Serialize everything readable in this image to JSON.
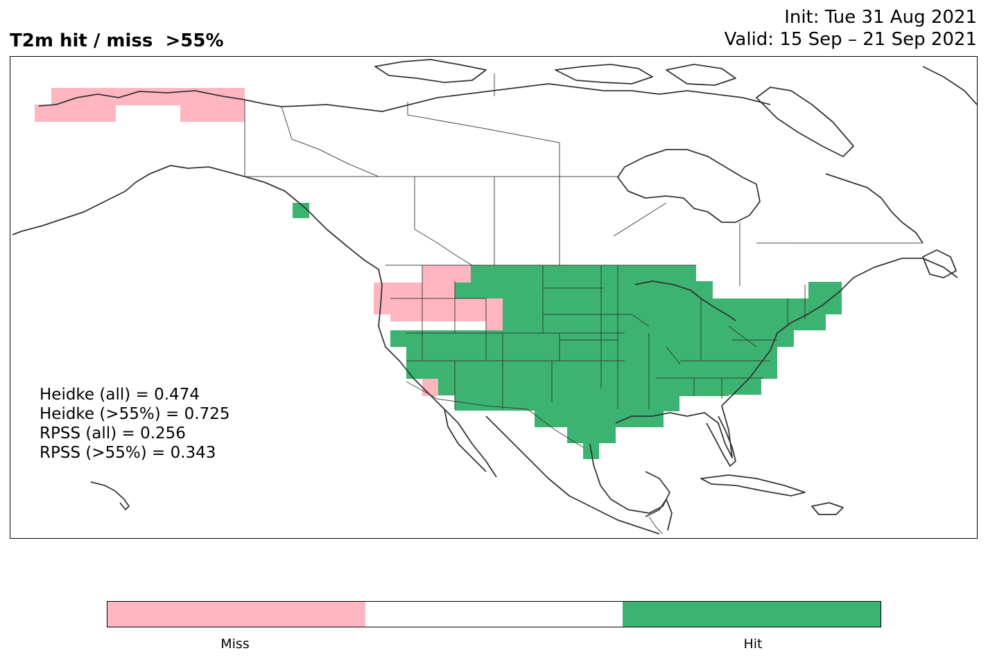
{
  "header": {
    "title": "T2m hit / miss  >55%",
    "init": "Init: Tue 31 Aug 2021",
    "valid": "Valid: 15 Sep – 21 Sep 2021"
  },
  "stats": [
    "Heidke (all) = 0.474",
    "Heidke (>55%) = 0.725",
    "RPSS (all) = 0.256",
    "RPSS (>55%) = 0.343"
  ],
  "colorbar": {
    "segments": [
      {
        "label": "Miss",
        "color": "#ffb6c1"
      },
      {
        "label": "",
        "color": "#ffffff"
      },
      {
        "label": "Hit",
        "color": "#3cb371"
      }
    ]
  },
  "map": {
    "region": "North America",
    "variable": "T2m",
    "colors": {
      "miss": "#ffb6c1",
      "hit": "#3cb371",
      "border": "#333333"
    }
  }
}
